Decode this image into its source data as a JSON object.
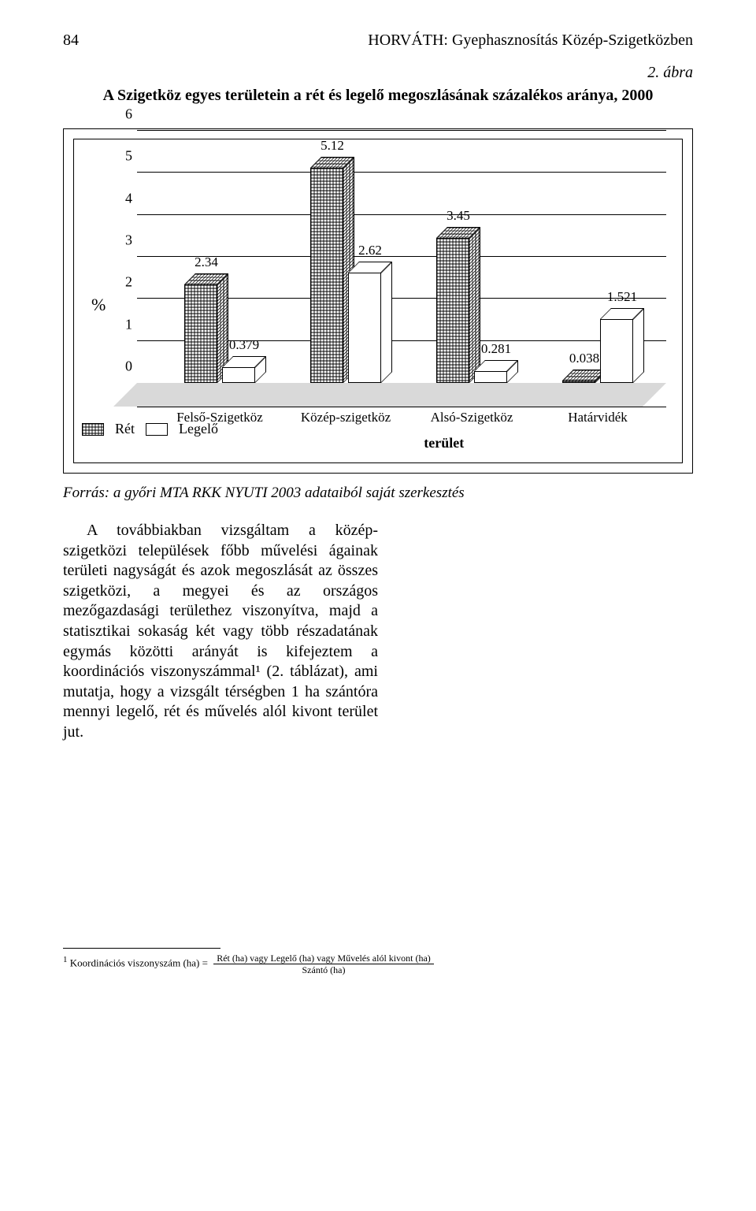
{
  "page_number": "84",
  "running_head": "HORVÁTH: Gyephasznosítás Közép-Szigetközben",
  "figure": {
    "label": "2. ábra",
    "title": "A Szigetköz egyes területein a rét és legelő megoszlásának százalékos aránya, 2000",
    "type": "bar3d-grouped",
    "ylabel": "%",
    "xlabel": "terület",
    "ylim": [
      0,
      6
    ],
    "ytick_step": 1,
    "yticks": [
      "0",
      "1",
      "2",
      "3",
      "4",
      "5",
      "6"
    ],
    "categories": [
      "Felső-Szigetköz",
      "Közép-szigetköz",
      "Alsó-Szigetköz",
      "Határvidék"
    ],
    "series": [
      {
        "name": "Rét",
        "pattern": "crosshatch",
        "color": "#ffffff",
        "pattern_color": "#000000"
      },
      {
        "name": "Legelő",
        "pattern": "solid",
        "color": "#ffffff"
      }
    ],
    "values": {
      "ret": [
        2.34,
        5.12,
        3.45,
        0.038
      ],
      "legelo": [
        0.379,
        2.62,
        0.281,
        1.521
      ]
    },
    "value_labels": {
      "ret": [
        "2.34",
        "5.12",
        "3.45",
        "0.038"
      ],
      "legelo": [
        "0.379",
        "2.62",
        "0.281",
        "1.521"
      ]
    },
    "colors": {
      "background": "#ffffff",
      "floor": "#d9d9d9",
      "axis": "#000000",
      "grid": "#000000",
      "bar_border": "#000000"
    }
  },
  "source_line": "Forrás: a győri MTA RKK NYUTI 2003 adataiból saját szerkesztés",
  "body_paragraph": "A továbbiakban vizsgáltam a közép-szigetközi települések főbb művelési ágainak területi nagyságát és azok megoszlását az összes szigetközi, a megyei és az országos mezőgazdasági területhez viszonyítva, majd a statisztikai sokaság két vagy több részadatának egymás közötti arányát is kifejeztem a koordinációs viszonyszámmal¹ (2. táblázat), ami mutatja, hogy a vizsgált térségben 1 ha szántóra mennyi legelő, rét és művelés alól kivont terület jut.",
  "footnote": {
    "marker": "1",
    "lhs": "Koordinációs viszonyszám (ha) =",
    "numerator": "Rét (ha) vagy Legelő (ha) vagy Művelés alól kivont (ha)",
    "denominator": "Szántó (ha)"
  }
}
